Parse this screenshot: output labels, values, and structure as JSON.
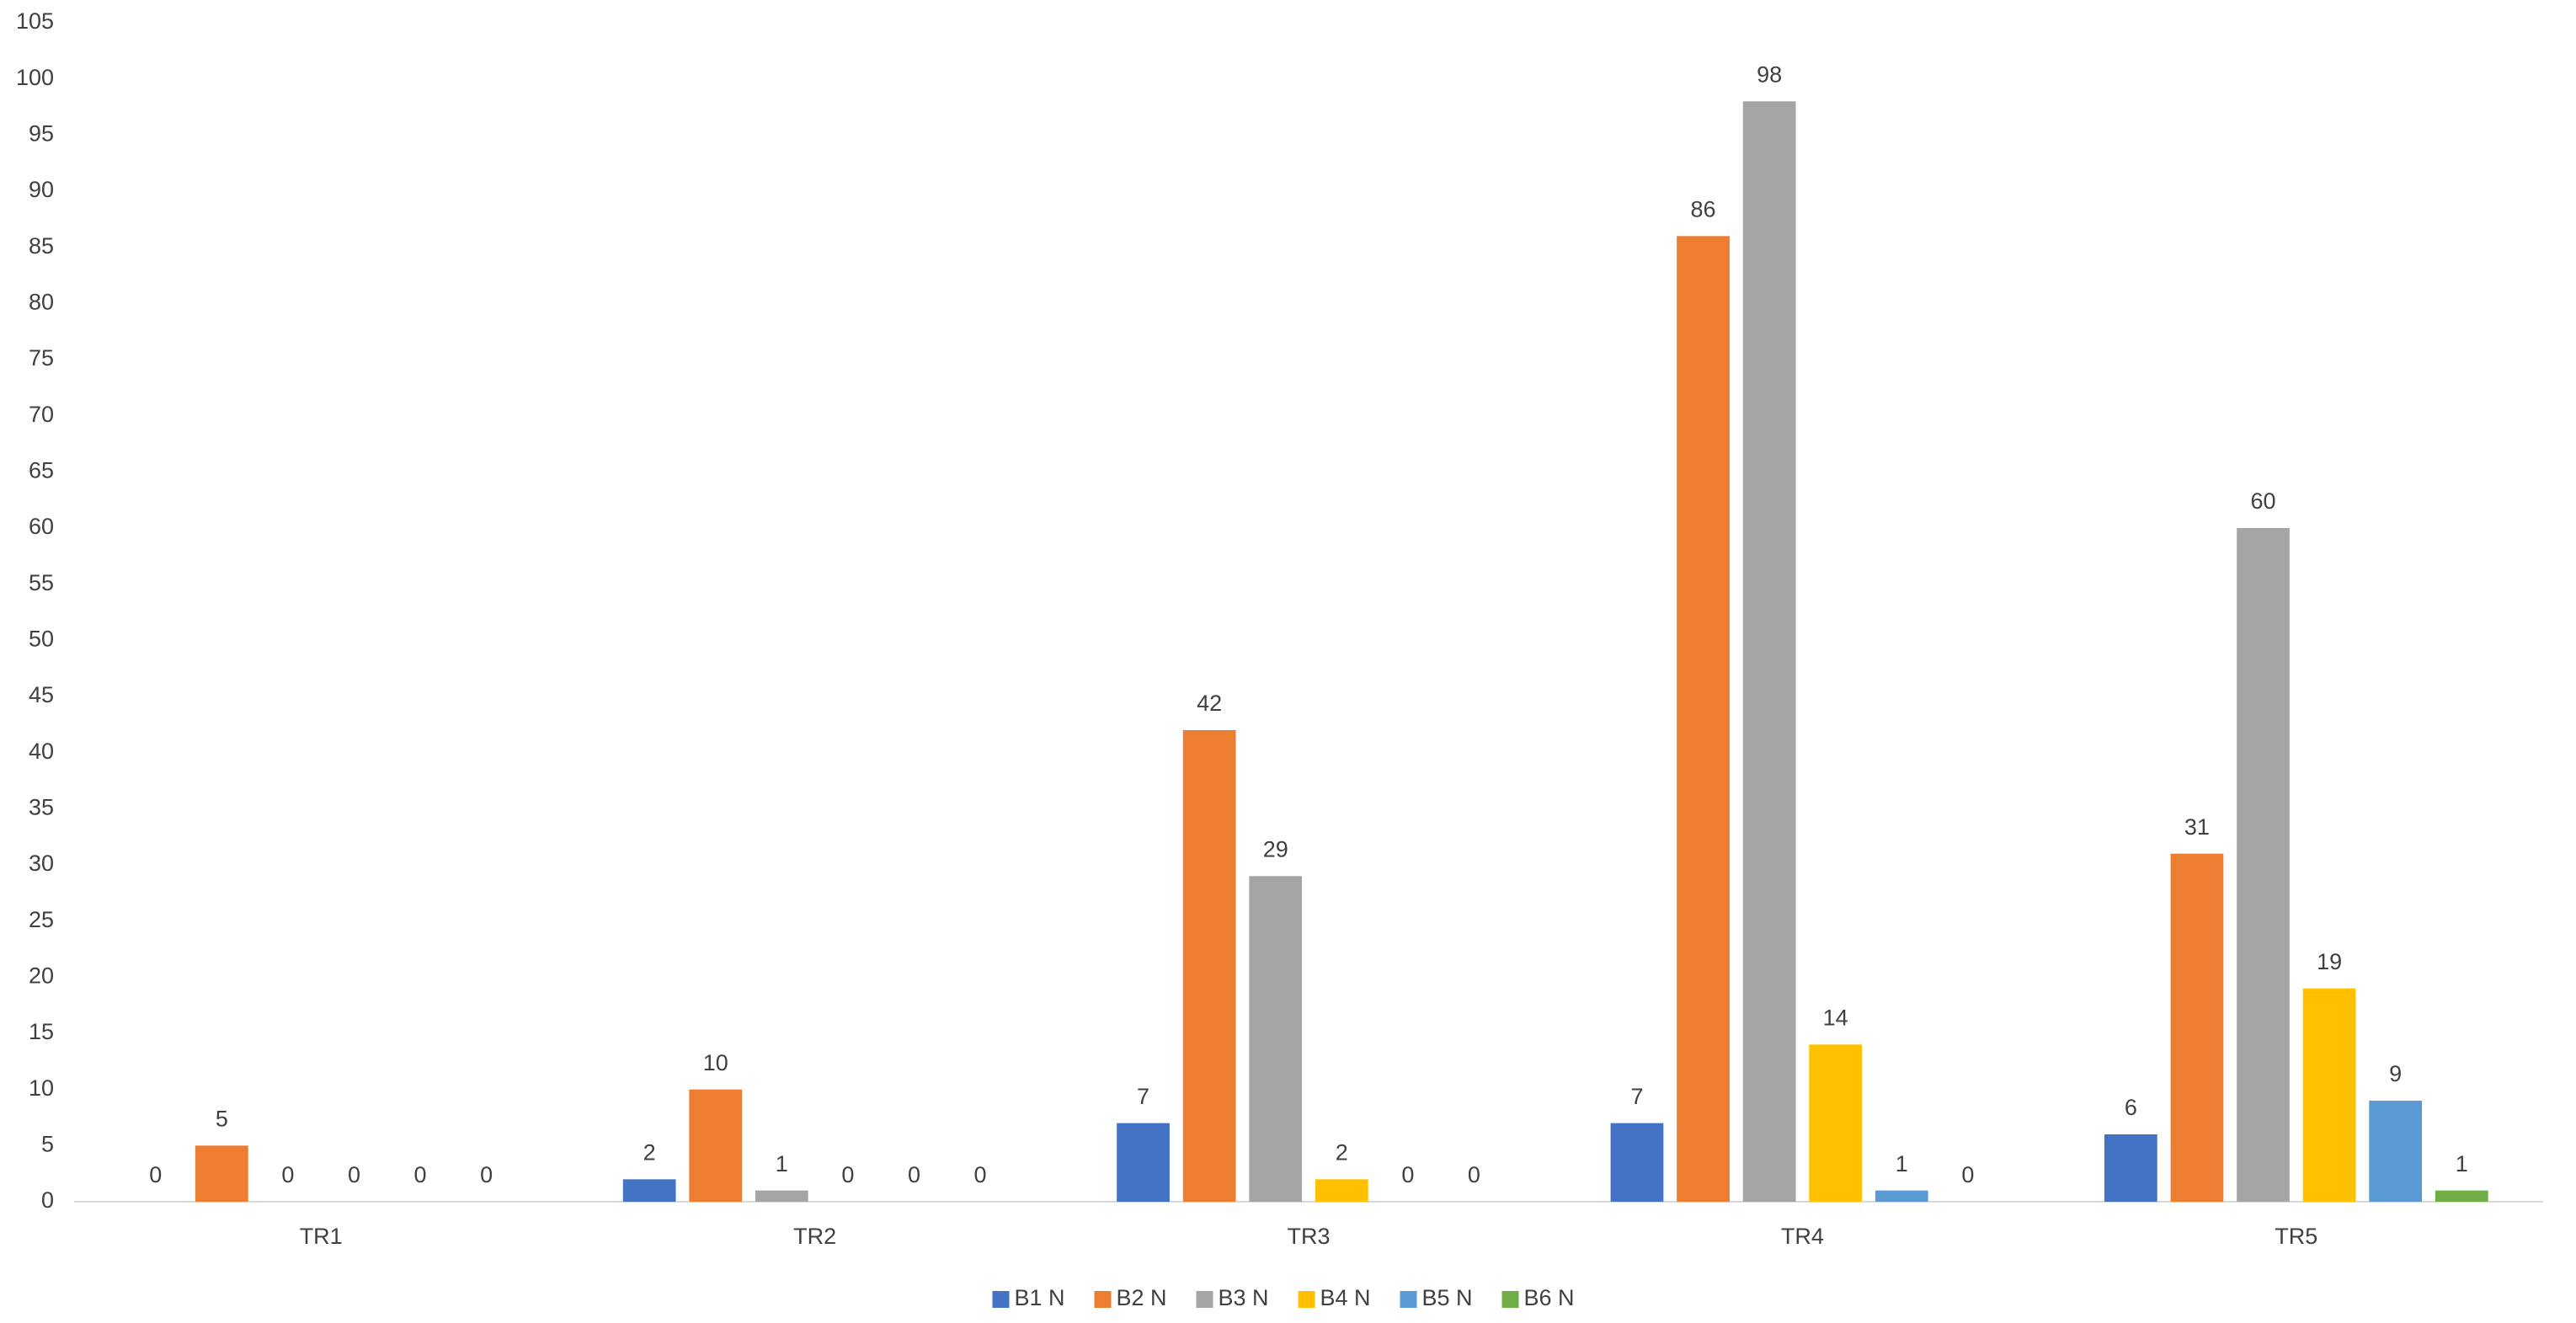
{
  "chart_data": {
    "type": "bar",
    "categories": [
      "TR1",
      "TR2",
      "TR3",
      "TR4",
      "TR5"
    ],
    "series": [
      {
        "name": "B1 N",
        "color": "#4472c4",
        "values": [
          0,
          2,
          7,
          7,
          6
        ]
      },
      {
        "name": "B2 N",
        "color": "#ed7d31",
        "values": [
          5,
          10,
          42,
          86,
          31
        ]
      },
      {
        "name": "B3 N",
        "color": "#a5a5a5",
        "values": [
          0,
          1,
          29,
          98,
          60
        ]
      },
      {
        "name": "B4 N",
        "color": "#ffc000",
        "values": [
          0,
          0,
          2,
          14,
          19
        ]
      },
      {
        "name": "B5 N",
        "color": "#5b9bd5",
        "values": [
          0,
          0,
          0,
          1,
          9
        ]
      },
      {
        "name": "B6 N",
        "color": "#70ad47",
        "values": [
          0,
          0,
          0,
          0,
          1
        ]
      }
    ],
    "ylim": [
      0,
      105
    ],
    "yticks": [
      0,
      5,
      10,
      15,
      20,
      25,
      30,
      35,
      40,
      45,
      50,
      55,
      60,
      65,
      70,
      75,
      80,
      85,
      90,
      95,
      100,
      105
    ],
    "grid": false,
    "data_labels": true,
    "legend": "bottom"
  }
}
